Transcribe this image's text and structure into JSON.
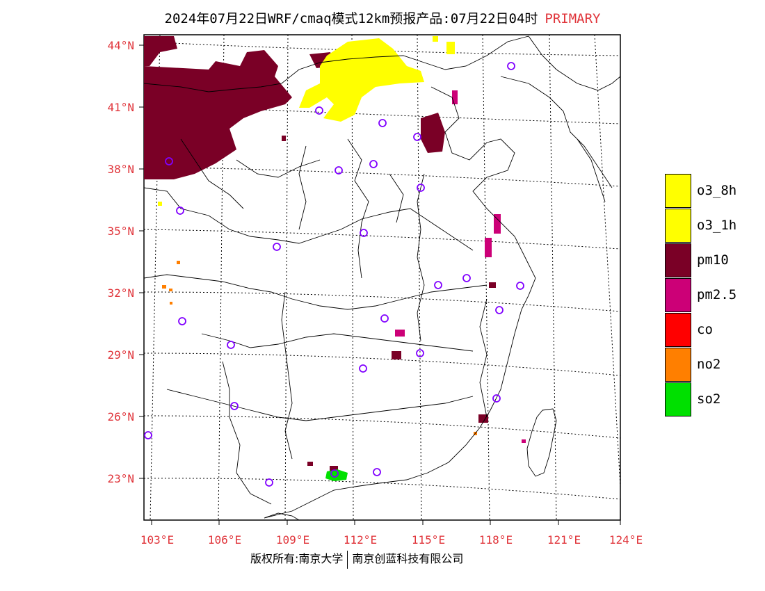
{
  "title": {
    "main": "2024年07月22日WRF/cmaq模式12km预报产品:07月22日04时",
    "tag": "PRIMARY"
  },
  "axes": {
    "lat_labels": [
      "44°N",
      "41°N",
      "38°N",
      "35°N",
      "32°N",
      "29°N",
      "26°N",
      "23°N"
    ],
    "lon_labels": [
      "103°E",
      "106°E",
      "109°E",
      "112°E",
      "115°E",
      "118°E",
      "121°E",
      "124°E"
    ]
  },
  "legend": {
    "items": [
      {
        "label": "o3_8h",
        "color": "#ffff00"
      },
      {
        "label": "o3_1h",
        "color": "#ffff00"
      },
      {
        "label": "pm10",
        "color": "#7a0026"
      },
      {
        "label": "pm2.5",
        "color": "#cc0077"
      },
      {
        "label": "co",
        "color": "#ff0000"
      },
      {
        "label": "no2",
        "color": "#ff7f00"
      },
      {
        "label": "so2",
        "color": "#00e000"
      }
    ]
  },
  "footer": {
    "left": "版权所有:南京大学",
    "right": "南京创蓝科技有限公司"
  },
  "colors": {
    "tick_red": "#e0343a",
    "pm10": "#7a0026",
    "pm25": "#cc0077",
    "o3": "#ffff00",
    "so2": "#00e000",
    "no2": "#ff7f00",
    "station": "#8000ff"
  }
}
